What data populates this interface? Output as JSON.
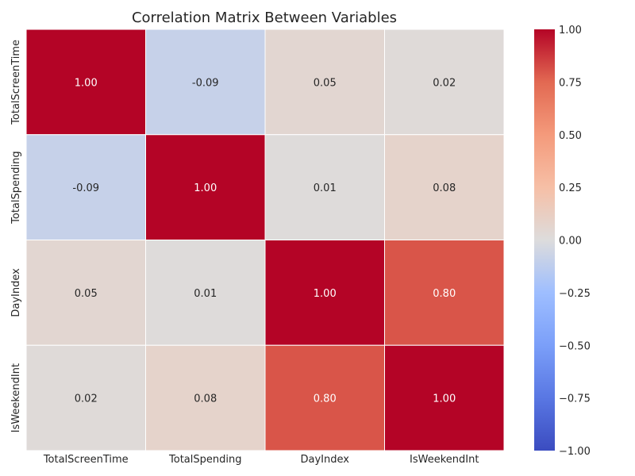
{
  "chart_data": {
    "type": "heatmap",
    "title": "Correlation Matrix Between Variables",
    "x_labels": [
      "TotalScreenTime",
      "TotalSpending",
      "DayIndex",
      "IsWeekendInt"
    ],
    "y_labels": [
      "TotalScreenTime",
      "TotalSpending",
      "DayIndex",
      "IsWeekendInt"
    ],
    "values": [
      [
        1.0,
        -0.09,
        0.05,
        0.02
      ],
      [
        -0.09,
        1.0,
        0.01,
        0.08
      ],
      [
        0.05,
        0.01,
        1.0,
        0.8
      ],
      [
        0.02,
        0.08,
        0.8,
        1.0
      ]
    ],
    "value_labels": [
      [
        "1.00",
        "-0.09",
        "0.05",
        "0.02"
      ],
      [
        "-0.09",
        "1.00",
        "0.01",
        "0.08"
      ],
      [
        "0.05",
        "0.01",
        "1.00",
        "0.80"
      ],
      [
        "0.02",
        "0.08",
        "0.80",
        "1.00"
      ]
    ],
    "colorbar": {
      "colormap": "coolwarm",
      "vmin": -1.0,
      "vmax": 1.0,
      "ticks": [
        1.0,
        0.75,
        0.5,
        0.25,
        0.0,
        -0.25,
        -0.5,
        -0.75,
        -1.0
      ],
      "tick_labels": [
        "1.00",
        "0.75",
        "0.50",
        "0.25",
        "0.00",
        "−0.25",
        "−0.50",
        "−0.75",
        "−1.00"
      ]
    },
    "grid": false,
    "legend": "colorbar-right"
  }
}
